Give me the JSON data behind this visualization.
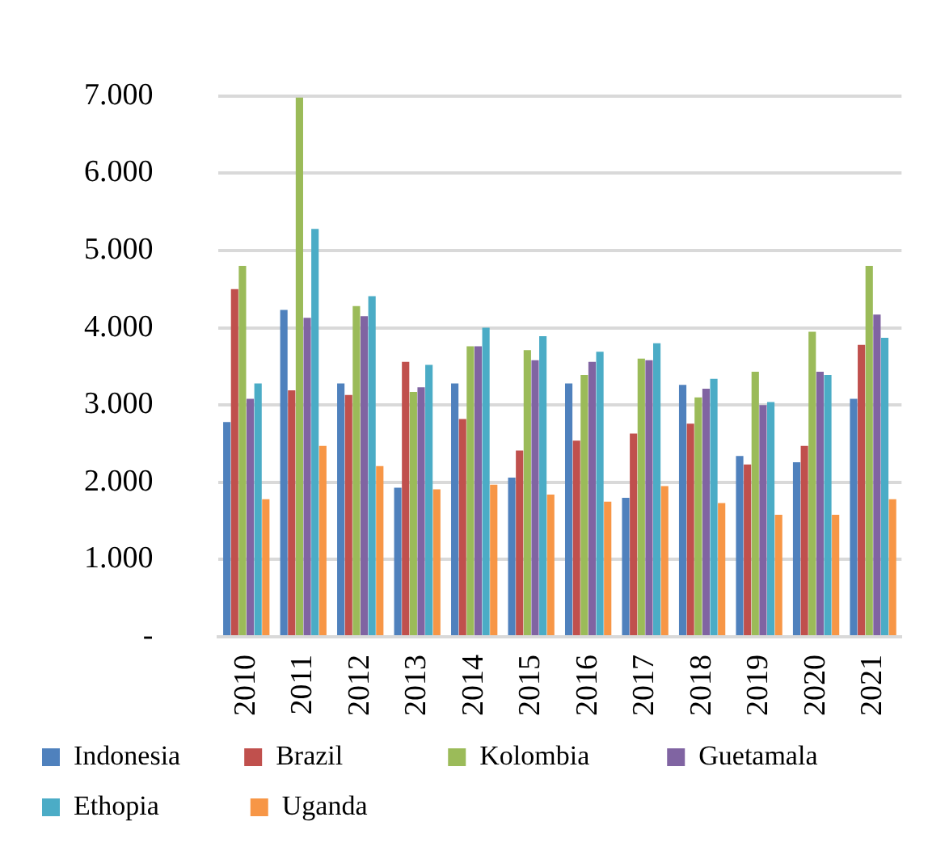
{
  "chart_data": {
    "type": "bar",
    "categories": [
      "2010",
      "2011",
      "2012",
      "2013",
      "2014",
      "2015",
      "2016",
      "2017",
      "2018",
      "2019",
      "2020",
      "2021"
    ],
    "series": [
      {
        "name": "Indonesia",
        "color": "#4f81bd",
        "values": [
          2780,
          4230,
          3280,
          1930,
          3280,
          2060,
          3280,
          1800,
          3260,
          2340,
          2260,
          3080
        ]
      },
      {
        "name": "Brazil",
        "color": "#c0504d",
        "values": [
          4500,
          3190,
          3130,
          3560,
          2820,
          2410,
          2540,
          2630,
          2760,
          2230,
          2470,
          3780
        ]
      },
      {
        "name": "Kolombia",
        "color": "#9bbb59",
        "values": [
          4800,
          6980,
          4280,
          3170,
          3760,
          3710,
          3390,
          3600,
          3100,
          3430,
          3950,
          4800
        ]
      },
      {
        "name": "Guetamala",
        "color": "#8064a2",
        "values": [
          3080,
          4130,
          4150,
          3230,
          3760,
          3580,
          3560,
          3580,
          3210,
          3000,
          3430,
          4170
        ]
      },
      {
        "name": "Ethopia",
        "color": "#4bacc6",
        "values": [
          3280,
          5280,
          4410,
          3520,
          4000,
          3890,
          3690,
          3800,
          3340,
          3040,
          3390,
          3870
        ]
      },
      {
        "name": "Uganda",
        "color": "#f79646",
        "values": [
          1780,
          2470,
          2210,
          1910,
          1970,
          1840,
          1750,
          1950,
          1730,
          1580,
          1580,
          1780
        ]
      }
    ],
    "ylim": [
      0,
      7000
    ],
    "yticks": [
      {
        "value": 0,
        "label": "-"
      },
      {
        "value": 1000,
        "label": "1.000"
      },
      {
        "value": 2000,
        "label": "2.000"
      },
      {
        "value": 3000,
        "label": "3.000"
      },
      {
        "value": 4000,
        "label": "4.000"
      },
      {
        "value": 5000,
        "label": "5.000"
      },
      {
        "value": 6000,
        "label": "6.000"
      },
      {
        "value": 7000,
        "label": "7.000"
      }
    ],
    "grid": "y",
    "legend": "bottom"
  }
}
